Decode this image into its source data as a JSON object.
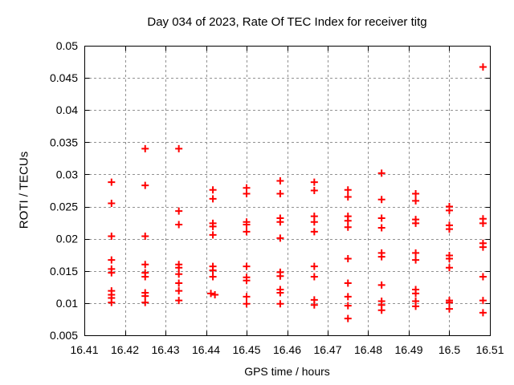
{
  "chart_data": {
    "type": "scatter",
    "title": "Day 034 of 2023, Rate Of TEC Index for receiver titg",
    "xlabel": "GPS time / hours",
    "ylabel": "ROTI / TECUs",
    "xlim": [
      16.41,
      16.51
    ],
    "ylim": [
      0.005,
      0.05
    ],
    "xticks": [
      16.41,
      16.42,
      16.43,
      16.44,
      16.45,
      16.46,
      16.47,
      16.48,
      16.49,
      16.5,
      16.51
    ],
    "xtick_labels": [
      "16.41",
      "16.42",
      "16.43",
      "16.44",
      "16.45",
      "16.46",
      "16.47",
      "16.48",
      "16.49",
      "16.5",
      "16.51"
    ],
    "yticks": [
      0.005,
      0.01,
      0.015,
      0.02,
      0.025,
      0.03,
      0.035,
      0.04,
      0.045,
      0.05
    ],
    "ytick_labels": [
      "0.005",
      "0.01",
      "0.015",
      "0.02",
      "0.025",
      "0.03",
      "0.035",
      "0.04",
      "0.045",
      "0.05"
    ],
    "grid": true,
    "legend": "none",
    "grid_color": "#919191",
    "axis_color": "#000000",
    "marker": {
      "shape": "plus",
      "color": "#ff0000",
      "size": 9,
      "stroke_width": 2
    },
    "series": [
      {
        "name": "ROTI",
        "points": [
          [
            16.4167,
            0.0288
          ],
          [
            16.4167,
            0.0255
          ],
          [
            16.4167,
            0.0204
          ],
          [
            16.4167,
            0.0167
          ],
          [
            16.4167,
            0.0153
          ],
          [
            16.4167,
            0.0147
          ],
          [
            16.4167,
            0.0119
          ],
          [
            16.4167,
            0.0113
          ],
          [
            16.4167,
            0.0108
          ],
          [
            16.4167,
            0.0101
          ],
          [
            16.425,
            0.034
          ],
          [
            16.425,
            0.0283
          ],
          [
            16.425,
            0.0204
          ],
          [
            16.425,
            0.016
          ],
          [
            16.425,
            0.0147
          ],
          [
            16.425,
            0.0141
          ],
          [
            16.425,
            0.0116
          ],
          [
            16.425,
            0.0111
          ],
          [
            16.425,
            0.0101
          ],
          [
            16.4333,
            0.034
          ],
          [
            16.4333,
            0.0243
          ],
          [
            16.4333,
            0.0222
          ],
          [
            16.4333,
            0.016
          ],
          [
            16.4333,
            0.0155
          ],
          [
            16.4333,
            0.0145
          ],
          [
            16.4333,
            0.0131
          ],
          [
            16.4333,
            0.0119
          ],
          [
            16.4333,
            0.0104
          ],
          [
            16.4417,
            0.0276
          ],
          [
            16.4417,
            0.0262
          ],
          [
            16.4417,
            0.0224
          ],
          [
            16.4417,
            0.0219
          ],
          [
            16.4417,
            0.0206
          ],
          [
            16.4417,
            0.0157
          ],
          [
            16.4417,
            0.0151
          ],
          [
            16.4417,
            0.0141
          ],
          [
            16.4412,
            0.0115
          ],
          [
            16.4422,
            0.0113
          ],
          [
            16.45,
            0.0279
          ],
          [
            16.45,
            0.027
          ],
          [
            16.45,
            0.0226
          ],
          [
            16.45,
            0.0222
          ],
          [
            16.45,
            0.0211
          ],
          [
            16.45,
            0.0157
          ],
          [
            16.45,
            0.014
          ],
          [
            16.45,
            0.0135
          ],
          [
            16.45,
            0.011
          ],
          [
            16.45,
            0.0099
          ],
          [
            16.4583,
            0.029
          ],
          [
            16.4583,
            0.027
          ],
          [
            16.4583,
            0.0232
          ],
          [
            16.4583,
            0.0226
          ],
          [
            16.4583,
            0.0201
          ],
          [
            16.4583,
            0.0148
          ],
          [
            16.4583,
            0.0142
          ],
          [
            16.4583,
            0.0121
          ],
          [
            16.4583,
            0.0116
          ],
          [
            16.4583,
            0.0099
          ],
          [
            16.4667,
            0.0288
          ],
          [
            16.4667,
            0.0275
          ],
          [
            16.4667,
            0.0235
          ],
          [
            16.4667,
            0.0226
          ],
          [
            16.4667,
            0.0211
          ],
          [
            16.4667,
            0.0157
          ],
          [
            16.4667,
            0.0141
          ],
          [
            16.4667,
            0.0105
          ],
          [
            16.4667,
            0.0097
          ],
          [
            16.475,
            0.0276
          ],
          [
            16.475,
            0.0265
          ],
          [
            16.475,
            0.0235
          ],
          [
            16.475,
            0.0228
          ],
          [
            16.475,
            0.0218
          ],
          [
            16.475,
            0.0169
          ],
          [
            16.475,
            0.0131
          ],
          [
            16.475,
            0.011
          ],
          [
            16.475,
            0.0096
          ],
          [
            16.475,
            0.0076
          ],
          [
            16.4833,
            0.0302
          ],
          [
            16.4833,
            0.0261
          ],
          [
            16.4833,
            0.0232
          ],
          [
            16.4833,
            0.0217
          ],
          [
            16.4833,
            0.0178
          ],
          [
            16.4833,
            0.0172
          ],
          [
            16.4833,
            0.0128
          ],
          [
            16.4833,
            0.0103
          ],
          [
            16.4833,
            0.0097
          ],
          [
            16.4833,
            0.0089
          ],
          [
            16.4917,
            0.027
          ],
          [
            16.4917,
            0.0259
          ],
          [
            16.4917,
            0.023
          ],
          [
            16.4917,
            0.0224
          ],
          [
            16.4917,
            0.0178
          ],
          [
            16.4917,
            0.0167
          ],
          [
            16.4917,
            0.0121
          ],
          [
            16.4917,
            0.0115
          ],
          [
            16.4917,
            0.0103
          ],
          [
            16.4917,
            0.0095
          ],
          [
            16.5,
            0.025
          ],
          [
            16.5,
            0.0244
          ],
          [
            16.5,
            0.0221
          ],
          [
            16.5,
            0.0215
          ],
          [
            16.5,
            0.0174
          ],
          [
            16.5,
            0.0169
          ],
          [
            16.5,
            0.0155
          ],
          [
            16.5,
            0.0104
          ],
          [
            16.5,
            0.0101
          ],
          [
            16.5,
            0.0091
          ],
          [
            16.5083,
            0.0467
          ],
          [
            16.5083,
            0.0231
          ],
          [
            16.5083,
            0.0224
          ],
          [
            16.5083,
            0.0193
          ],
          [
            16.5083,
            0.0187
          ],
          [
            16.5083,
            0.0141
          ],
          [
            16.5083,
            0.0104
          ],
          [
            16.5083,
            0.0085
          ]
        ]
      }
    ]
  }
}
